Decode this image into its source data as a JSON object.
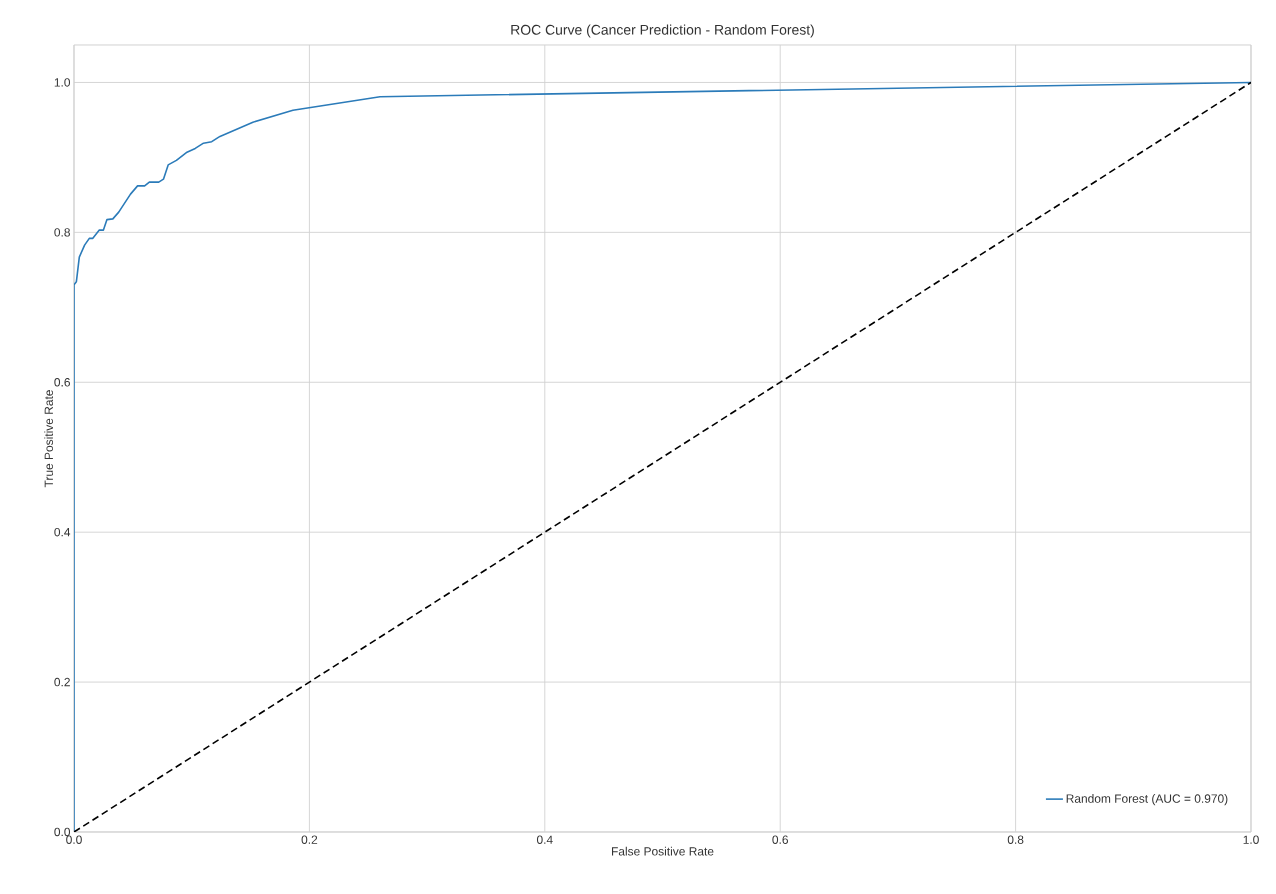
{
  "chart_data": {
    "type": "line",
    "title": "ROC Curve (Cancer Prediction - Random Forest)",
    "xlabel": "False Positive Rate",
    "ylabel": "True Positive Rate",
    "xlim": [
      0,
      1
    ],
    "ylim": [
      0,
      1.05
    ],
    "xticks": [
      {
        "value": 0,
        "label": "0.0"
      },
      0.2,
      0.4,
      0.6,
      0.8,
      {
        "value": 1,
        "label": "1.0"
      }
    ],
    "yticks": [
      {
        "value": 0,
        "label": "0.0"
      },
      0.2,
      0.4,
      0.6,
      0.8,
      {
        "value": 1,
        "label": "1.0"
      }
    ],
    "grid": true,
    "legend": "bottom right",
    "marker": "none",
    "series": [
      {
        "name": "Random Forest (AUC = 0.970)",
        "color": "#2b7bb9",
        "line_style": "solid",
        "x": [
          0,
          0,
          0.002,
          0.0045,
          0.009,
          0.013,
          0.016,
          0.0215,
          0.025,
          0.028,
          0.033,
          0.038,
          0.048,
          0.054,
          0.06,
          0.064,
          0.072,
          0.076,
          0.08,
          0.087,
          0.096,
          0.103,
          0.11,
          0.117,
          0.124,
          0.152,
          0.186,
          0.26,
          1
        ],
        "values": [
          0,
          0.73,
          0.734,
          0.767,
          0.783,
          0.792,
          0.792,
          0.803,
          0.803,
          0.817,
          0.818,
          0.827,
          0.851,
          0.862,
          0.862,
          0.867,
          0.867,
          0.871,
          0.89,
          0.896,
          0.907,
          0.912,
          0.919,
          0.921,
          0.928,
          0.947,
          0.963,
          0.981,
          1
        ]
      },
      {
        "color": "#000000",
        "line_style": "dashed",
        "x": [
          0,
          1
        ],
        "values": [
          0,
          1
        ]
      }
    ]
  }
}
